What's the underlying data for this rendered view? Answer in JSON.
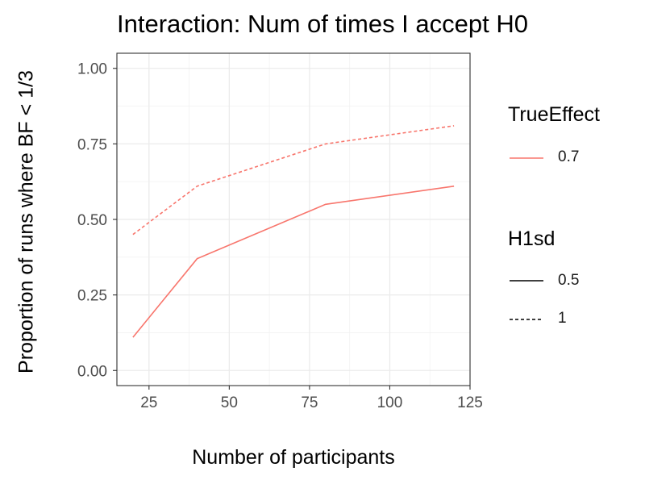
{
  "chart_data": {
    "type": "line",
    "title": "Interaction: Num of times I accept H0",
    "xlabel": "Number of participants",
    "ylabel": "Proportion of runs where BF < 1/3",
    "xlim": [
      15,
      125
    ],
    "ylim": [
      -0.05,
      1.05
    ],
    "xticks": [
      25,
      50,
      75,
      100,
      125
    ],
    "yticks": [
      0.0,
      0.25,
      0.5,
      0.75,
      1.0
    ],
    "xtick_labels": [
      "25",
      "50",
      "75",
      "100",
      "125"
    ],
    "ytick_labels": [
      "0.00",
      "0.25",
      "0.50",
      "0.75",
      "1.00"
    ],
    "grid": true,
    "legend_position": "right",
    "series": [
      {
        "name": "0.5",
        "true_effect": "0.7",
        "linetype": "solid",
        "color": "#F8766D",
        "x": [
          20,
          40,
          80,
          120
        ],
        "y": [
          0.11,
          0.37,
          0.55,
          0.61
        ]
      },
      {
        "name": "1",
        "true_effect": "0.7",
        "linetype": "dashed",
        "color": "#F8766D",
        "x": [
          20,
          40,
          80,
          120
        ],
        "y": [
          0.45,
          0.61,
          0.75,
          0.81
        ]
      }
    ],
    "legend": {
      "color_title": "TrueEffect",
      "color_items": [
        {
          "label": "0.7",
          "color": "#F8766D"
        }
      ],
      "linetype_title": "H1sd",
      "linetype_items": [
        {
          "label": "0.5",
          "linetype": "solid"
        },
        {
          "label": "1",
          "linetype": "dashed"
        }
      ]
    }
  }
}
